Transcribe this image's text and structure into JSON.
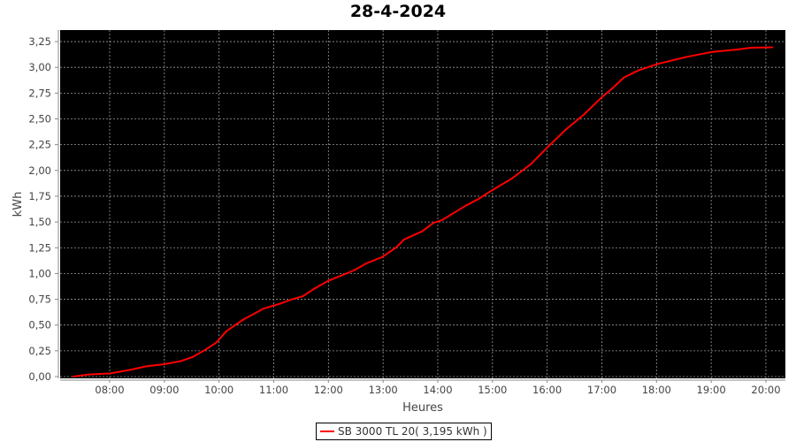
{
  "chart_data": {
    "type": "line",
    "title": "28-4-2024",
    "xlabel": "Heures",
    "ylabel": "kWh",
    "ylim": [
      0,
      3.35
    ],
    "xlim": [
      "07:05",
      "20:22"
    ],
    "x_ticks": [
      "08:00",
      "09:00",
      "10:00",
      "11:00",
      "12:00",
      "13:00",
      "14:00",
      "15:00",
      "16:00",
      "17:00",
      "18:00",
      "19:00",
      "20:00"
    ],
    "y_ticks": [
      "0,00",
      "0,25",
      "0,50",
      "0,75",
      "1,00",
      "1,25",
      "1,50",
      "1,75",
      "2,00",
      "2,25",
      "2,50",
      "2,75",
      "3,00",
      "3,25"
    ],
    "grid": true,
    "background": "#000000",
    "legend_position": "bottom",
    "series": [
      {
        "name": "SB 3000 TL 20( 3,195 kWh )",
        "color": "#ff0000",
        "x": [
          "07:20",
          "07:37",
          "08:00",
          "08:25",
          "08:40",
          "09:00",
          "09:18",
          "09:31",
          "09:45",
          "09:57",
          "10:08",
          "10:26",
          "10:49",
          "11:08",
          "11:20",
          "11:32",
          "11:44",
          "12:00",
          "12:28",
          "12:42",
          "12:59",
          "13:14",
          "13:23",
          "13:43",
          "13:55",
          "14:05",
          "14:31",
          "14:44",
          "15:00",
          "15:21",
          "15:42",
          "16:01",
          "16:21",
          "16:40",
          "17:00",
          "17:12",
          "17:24",
          "17:40",
          "18:00",
          "18:32",
          "19:01",
          "19:25",
          "19:44",
          "20:07"
        ],
        "y": [
          0,
          0.02,
          0.03,
          0.07,
          0.1,
          0.12,
          0.15,
          0.19,
          0.26,
          0.33,
          0.44,
          0.55,
          0.66,
          0.71,
          0.75,
          0.78,
          0.85,
          0.93,
          1.03,
          1.1,
          1.16,
          1.25,
          1.33,
          1.41,
          1.49,
          1.52,
          1.66,
          1.72,
          1.81,
          1.92,
          2.06,
          2.23,
          2.4,
          2.54,
          2.71,
          2.8,
          2.9,
          2.97,
          3.03,
          3.1,
          3.15,
          3.17,
          3.19,
          3.195
        ]
      }
    ]
  }
}
